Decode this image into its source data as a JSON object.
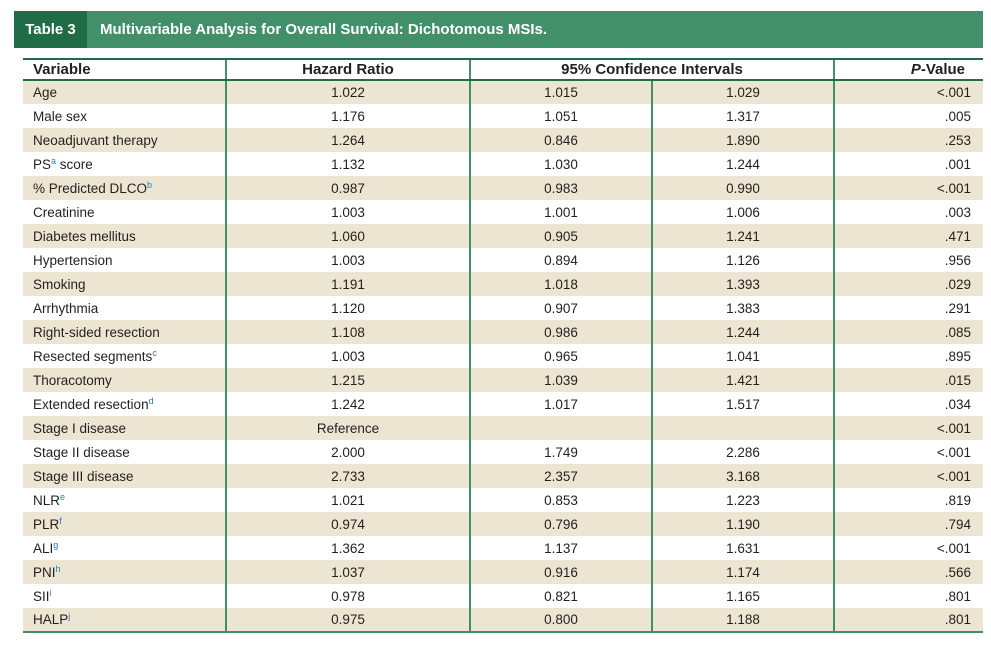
{
  "header": {
    "table_label": "Table 3",
    "title": "Multivariable Analysis for Overall Survival: Dichotomous MSIs."
  },
  "columns": {
    "variable": "Variable",
    "hazard_ratio": "Hazard Ratio",
    "ci": "95% Confidence Intervals",
    "p_prefix": "P",
    "p_suffix": "-Value"
  },
  "rows": [
    {
      "variable": "Age",
      "sup": "",
      "hr": "1.022",
      "lo": "1.015",
      "hi": "1.029",
      "p": "<.001"
    },
    {
      "variable": "Male sex",
      "sup": "",
      "hr": "1.176",
      "lo": "1.051",
      "hi": "1.317",
      "p": ".005"
    },
    {
      "variable": "Neoadjuvant therapy",
      "sup": "",
      "hr": "1.264",
      "lo": "0.846",
      "hi": "1.890",
      "p": ".253"
    },
    {
      "variable": "PS",
      "sup": "a",
      "suffix": " score",
      "hr": "1.132",
      "lo": "1.030",
      "hi": "1.244",
      "p": ".001"
    },
    {
      "variable": "% Predicted DLCO",
      "sup": "b",
      "hr": "0.987",
      "lo": "0.983",
      "hi": "0.990",
      "p": "<.001"
    },
    {
      "variable": "Creatinine",
      "sup": "",
      "hr": "1.003",
      "lo": "1.001",
      "hi": "1.006",
      "p": ".003"
    },
    {
      "variable": "Diabetes mellitus",
      "sup": "",
      "hr": "1.060",
      "lo": "0.905",
      "hi": "1.241",
      "p": ".471"
    },
    {
      "variable": "Hypertension",
      "sup": "",
      "hr": "1.003",
      "lo": "0.894",
      "hi": "1.126",
      "p": ".956"
    },
    {
      "variable": "Smoking",
      "sup": "",
      "hr": "1.191",
      "lo": "1.018",
      "hi": "1.393",
      "p": ".029"
    },
    {
      "variable": "Arrhythmia",
      "sup": "",
      "hr": "1.120",
      "lo": "0.907",
      "hi": "1.383",
      "p": ".291"
    },
    {
      "variable": "Right-sided resection",
      "sup": "",
      "hr": "1.108",
      "lo": "0.986",
      "hi": "1.244",
      "p": ".085"
    },
    {
      "variable": "Resected segments",
      "sup": "c",
      "hr": "1.003",
      "lo": "0.965",
      "hi": "1.041",
      "p": ".895"
    },
    {
      "variable": "Thoracotomy",
      "sup": "",
      "hr": "1.215",
      "lo": "1.039",
      "hi": "1.421",
      "p": ".015"
    },
    {
      "variable": "Extended resection",
      "sup": "d",
      "hr": "1.242",
      "lo": "1.017",
      "hi": "1.517",
      "p": ".034"
    },
    {
      "variable": "Stage I disease",
      "sup": "",
      "hr": "Reference",
      "lo": "",
      "hi": "",
      "p": "<.001"
    },
    {
      "variable": "Stage II disease",
      "sup": "",
      "hr": "2.000",
      "lo": "1.749",
      "hi": "2.286",
      "p": "<.001"
    },
    {
      "variable": "Stage III disease",
      "sup": "",
      "hr": "2.733",
      "lo": "2.357",
      "hi": "3.168",
      "p": "<.001"
    },
    {
      "variable": "NLR",
      "sup": "e",
      "hr": "1.021",
      "lo": "0.853",
      "hi": "1.223",
      "p": ".819"
    },
    {
      "variable": "PLR",
      "sup": "f",
      "hr": "0.974",
      "lo": "0.796",
      "hi": "1.190",
      "p": ".794"
    },
    {
      "variable": "ALI",
      "sup": "g",
      "hr": "1.362",
      "lo": "1.137",
      "hi": "1.631",
      "p": "<.001"
    },
    {
      "variable": "PNI",
      "sup": "h",
      "hr": "1.037",
      "lo": "0.916",
      "hi": "1.174",
      "p": ".566"
    },
    {
      "variable": "SII",
      "sup": "i",
      "hr": "0.978",
      "lo": "0.821",
      "hi": "1.165",
      "p": ".801"
    },
    {
      "variable": "HALP",
      "sup": "j",
      "hr": "0.975",
      "lo": "0.800",
      "hi": "1.188",
      "p": ".801"
    }
  ],
  "colors": {
    "title_bar": "#41906a",
    "title_label": "#1f6c46",
    "row_shade": "#ece5d1",
    "rule": "#41906a",
    "footnote_mark": "#2b7bbf"
  }
}
